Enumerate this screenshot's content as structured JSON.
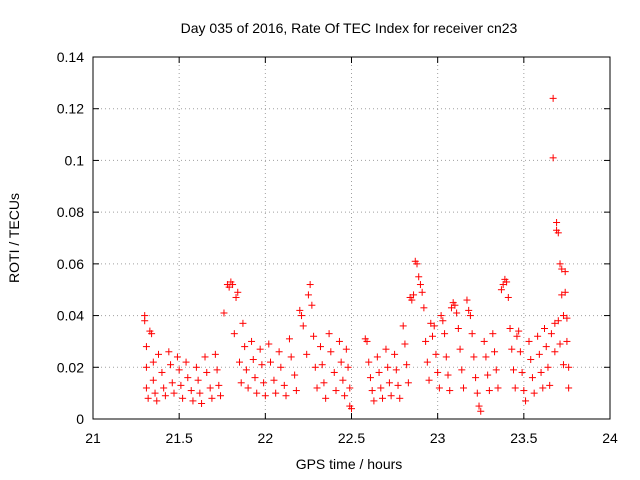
{
  "chart_data": {
    "type": "scatter",
    "title": "Day 035 of 2016, Rate Of TEC Index for receiver cn23",
    "xlabel": "GPS time / hours",
    "ylabel": "ROTI / TECUs",
    "xlim": [
      21,
      24
    ],
    "ylim": [
      0,
      0.14
    ],
    "xticks": [
      21,
      21.5,
      22,
      22.5,
      23,
      23.5,
      24
    ],
    "xtick_labels": [
      "21",
      "21.5",
      "22",
      "22.5",
      "23",
      "23.5",
      "24"
    ],
    "yticks": [
      0,
      0.02,
      0.04,
      0.06,
      0.08,
      0.1,
      0.12,
      0.14
    ],
    "ytick_labels": [
      "0",
      "0.02",
      "0.04",
      "0.06",
      "0.08",
      "0.1",
      "0.12",
      "0.14"
    ],
    "grid": true,
    "marker": "+",
    "color": "#ff0000",
    "series": [
      {
        "name": "ROTI",
        "points": [
          [
            21.3,
            0.04
          ],
          [
            21.3,
            0.038
          ],
          [
            21.31,
            0.028
          ],
          [
            21.31,
            0.02
          ],
          [
            21.31,
            0.012
          ],
          [
            21.32,
            0.008
          ],
          [
            21.33,
            0.034
          ],
          [
            21.34,
            0.033
          ],
          [
            21.35,
            0.022
          ],
          [
            21.35,
            0.015
          ],
          [
            21.36,
            0.01
          ],
          [
            21.37,
            0.007
          ],
          [
            21.38,
            0.025
          ],
          [
            21.4,
            0.018
          ],
          [
            21.41,
            0.012
          ],
          [
            21.42,
            0.009
          ],
          [
            21.44,
            0.026
          ],
          [
            21.45,
            0.021
          ],
          [
            21.46,
            0.014
          ],
          [
            21.47,
            0.01
          ],
          [
            21.49,
            0.024
          ],
          [
            21.5,
            0.019
          ],
          [
            21.51,
            0.013
          ],
          [
            21.52,
            0.008
          ],
          [
            21.54,
            0.022
          ],
          [
            21.55,
            0.016
          ],
          [
            21.57,
            0.011
          ],
          [
            21.58,
            0.007
          ],
          [
            21.6,
            0.02
          ],
          [
            21.61,
            0.015
          ],
          [
            21.62,
            0.01
          ],
          [
            21.63,
            0.006
          ],
          [
            21.65,
            0.024
          ],
          [
            21.66,
            0.018
          ],
          [
            21.68,
            0.012
          ],
          [
            21.69,
            0.008
          ],
          [
            21.71,
            0.025
          ],
          [
            21.72,
            0.019
          ],
          [
            21.73,
            0.013
          ],
          [
            21.74,
            0.009
          ],
          [
            21.76,
            0.041
          ],
          [
            21.78,
            0.052
          ],
          [
            21.79,
            0.051
          ],
          [
            21.8,
            0.053
          ],
          [
            21.81,
            0.052
          ],
          [
            21.82,
            0.033
          ],
          [
            21.83,
            0.047
          ],
          [
            21.84,
            0.049
          ],
          [
            21.85,
            0.022
          ],
          [
            21.86,
            0.014
          ],
          [
            21.87,
            0.037
          ],
          [
            21.88,
            0.028
          ],
          [
            21.89,
            0.019
          ],
          [
            21.9,
            0.012
          ],
          [
            21.92,
            0.03
          ],
          [
            21.93,
            0.023
          ],
          [
            21.94,
            0.016
          ],
          [
            21.95,
            0.01
          ],
          [
            21.97,
            0.027
          ],
          [
            21.98,
            0.021
          ],
          [
            21.99,
            0.014
          ],
          [
            22.0,
            0.009
          ],
          [
            22.02,
            0.029
          ],
          [
            22.03,
            0.022
          ],
          [
            22.05,
            0.015
          ],
          [
            22.06,
            0.01
          ],
          [
            22.08,
            0.026
          ],
          [
            22.09,
            0.02
          ],
          [
            22.11,
            0.013
          ],
          [
            22.12,
            0.009
          ],
          [
            22.14,
            0.031
          ],
          [
            22.15,
            0.024
          ],
          [
            22.17,
            0.017
          ],
          [
            22.18,
            0.011
          ],
          [
            22.2,
            0.042
          ],
          [
            22.21,
            0.04
          ],
          [
            22.22,
            0.036
          ],
          [
            22.24,
            0.025
          ],
          [
            22.25,
            0.048
          ],
          [
            22.26,
            0.052
          ],
          [
            22.27,
            0.044
          ],
          [
            22.28,
            0.032
          ],
          [
            22.29,
            0.02
          ],
          [
            22.3,
            0.012
          ],
          [
            22.32,
            0.028
          ],
          [
            22.33,
            0.021
          ],
          [
            22.34,
            0.014
          ],
          [
            22.35,
            0.008
          ],
          [
            22.37,
            0.033
          ],
          [
            22.38,
            0.026
          ],
          [
            22.4,
            0.018
          ],
          [
            22.41,
            0.011
          ],
          [
            22.43,
            0.03
          ],
          [
            22.44,
            0.022
          ],
          [
            22.45,
            0.015
          ],
          [
            22.46,
            0.009
          ],
          [
            22.47,
            0.027
          ],
          [
            22.48,
            0.02
          ],
          [
            22.49,
            0.012
          ],
          [
            22.49,
            0.005
          ],
          [
            22.5,
            0.004
          ],
          [
            22.58,
            0.031
          ],
          [
            22.59,
            0.03
          ],
          [
            22.6,
            0.022
          ],
          [
            22.61,
            0.016
          ],
          [
            22.62,
            0.011
          ],
          [
            22.63,
            0.007
          ],
          [
            22.65,
            0.024
          ],
          [
            22.66,
            0.018
          ],
          [
            22.67,
            0.012
          ],
          [
            22.68,
            0.008
          ],
          [
            22.7,
            0.027
          ],
          [
            22.71,
            0.02
          ],
          [
            22.72,
            0.014
          ],
          [
            22.73,
            0.009
          ],
          [
            22.75,
            0.025
          ],
          [
            22.76,
            0.019
          ],
          [
            22.77,
            0.013
          ],
          [
            22.78,
            0.008
          ],
          [
            22.8,
            0.036
          ],
          [
            22.81,
            0.029
          ],
          [
            22.82,
            0.021
          ],
          [
            22.83,
            0.014
          ],
          [
            22.84,
            0.047
          ],
          [
            22.85,
            0.046
          ],
          [
            22.86,
            0.048
          ],
          [
            22.87,
            0.061
          ],
          [
            22.88,
            0.06
          ],
          [
            22.89,
            0.055
          ],
          [
            22.9,
            0.052
          ],
          [
            22.91,
            0.049
          ],
          [
            22.92,
            0.043
          ],
          [
            22.93,
            0.03
          ],
          [
            22.94,
            0.022
          ],
          [
            22.95,
            0.015
          ],
          [
            22.96,
            0.037
          ],
          [
            22.97,
            0.032
          ],
          [
            22.98,
            0.036
          ],
          [
            22.99,
            0.025
          ],
          [
            23.0,
            0.018
          ],
          [
            23.01,
            0.012
          ],
          [
            23.02,
            0.04
          ],
          [
            23.03,
            0.038
          ],
          [
            23.04,
            0.033
          ],
          [
            23.05,
            0.024
          ],
          [
            23.06,
            0.017
          ],
          [
            23.07,
            0.011
          ],
          [
            23.08,
            0.043
          ],
          [
            23.09,
            0.045
          ],
          [
            23.1,
            0.044
          ],
          [
            23.11,
            0.041
          ],
          [
            23.12,
            0.035
          ],
          [
            23.13,
            0.027
          ],
          [
            23.14,
            0.019
          ],
          [
            23.15,
            0.012
          ],
          [
            23.17,
            0.046
          ],
          [
            23.18,
            0.042
          ],
          [
            23.19,
            0.04
          ],
          [
            23.2,
            0.033
          ],
          [
            23.21,
            0.024
          ],
          [
            23.22,
            0.016
          ],
          [
            23.23,
            0.01
          ],
          [
            23.24,
            0.005
          ],
          [
            23.25,
            0.003
          ],
          [
            23.27,
            0.03
          ],
          [
            23.28,
            0.024
          ],
          [
            23.29,
            0.017
          ],
          [
            23.3,
            0.011
          ],
          [
            23.32,
            0.033
          ],
          [
            23.33,
            0.026
          ],
          [
            23.34,
            0.019
          ],
          [
            23.35,
            0.012
          ],
          [
            23.37,
            0.05
          ],
          [
            23.38,
            0.052
          ],
          [
            23.39,
            0.054
          ],
          [
            23.4,
            0.053
          ],
          [
            23.41,
            0.047
          ],
          [
            23.42,
            0.035
          ],
          [
            23.43,
            0.027
          ],
          [
            23.44,
            0.019
          ],
          [
            23.45,
            0.012
          ],
          [
            23.46,
            0.032
          ],
          [
            23.47,
            0.034
          ],
          [
            23.48,
            0.026
          ],
          [
            23.49,
            0.018
          ],
          [
            23.5,
            0.011
          ],
          [
            23.51,
            0.007
          ],
          [
            23.53,
            0.03
          ],
          [
            23.54,
            0.023
          ],
          [
            23.55,
            0.016
          ],
          [
            23.56,
            0.01
          ],
          [
            23.58,
            0.032
          ],
          [
            23.59,
            0.025
          ],
          [
            23.6,
            0.018
          ],
          [
            23.61,
            0.012
          ],
          [
            23.62,
            0.035
          ],
          [
            23.63,
            0.028
          ],
          [
            23.64,
            0.02
          ],
          [
            23.65,
            0.013
          ],
          [
            23.66,
            0.033
          ],
          [
            23.67,
            0.124
          ],
          [
            23.67,
            0.101
          ],
          [
            23.68,
            0.037
          ],
          [
            23.68,
            0.026
          ],
          [
            23.69,
            0.076
          ],
          [
            23.69,
            0.073
          ],
          [
            23.7,
            0.072
          ],
          [
            23.7,
            0.038
          ],
          [
            23.71,
            0.06
          ],
          [
            23.71,
            0.029
          ],
          [
            23.72,
            0.058
          ],
          [
            23.72,
            0.048
          ],
          [
            23.73,
            0.04
          ],
          [
            23.73,
            0.021
          ],
          [
            23.74,
            0.057
          ],
          [
            23.74,
            0.049
          ],
          [
            23.75,
            0.039
          ],
          [
            23.75,
            0.03
          ],
          [
            23.76,
            0.02
          ],
          [
            23.76,
            0.012
          ]
        ]
      }
    ]
  }
}
